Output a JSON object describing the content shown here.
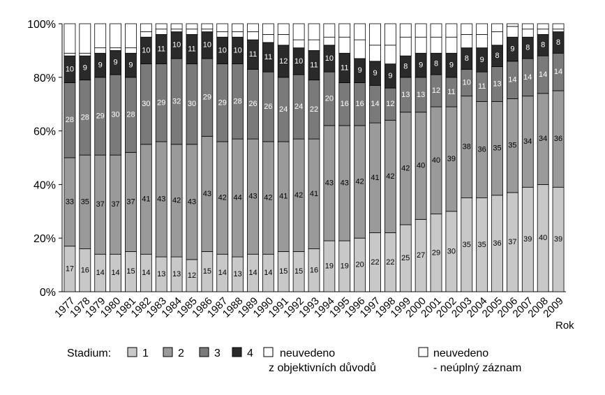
{
  "chart_data": {
    "type": "bar",
    "stacked": true,
    "percent": true,
    "title": "",
    "xlabel": "Rok",
    "ylabel": "",
    "ylim": [
      0,
      100
    ],
    "yticks": [
      "0%",
      "20%",
      "40%",
      "60%",
      "80%",
      "100%"
    ],
    "categories": [
      "1977",
      "1978",
      "1979",
      "1980",
      "1981",
      "1982",
      "1983",
      "1984",
      "1985",
      "1986",
      "1987",
      "1988",
      "1989",
      "1990",
      "1991",
      "1992",
      "1993",
      "1994",
      "1995",
      "1996",
      "1997",
      "1998",
      "1999",
      "2000",
      "2001",
      "2002",
      "2003",
      "2004",
      "2005",
      "2006",
      "2007",
      "2008",
      "2009"
    ],
    "legend_title": "Stadium:",
    "legend_position": "bottom",
    "series": [
      {
        "name": "1",
        "color": "#c8c8c8",
        "values": [
          17,
          16,
          14,
          14,
          15,
          14,
          13,
          13,
          12,
          15,
          14,
          13,
          14,
          14,
          15,
          15,
          16,
          19,
          19,
          20,
          22,
          22,
          25,
          27,
          29,
          30,
          35,
          35,
          36,
          37,
          39,
          40,
          39
        ]
      },
      {
        "name": "2",
        "color": "#9a9a9a",
        "values": [
          33,
          35,
          37,
          37,
          37,
          41,
          43,
          42,
          43,
          43,
          42,
          44,
          43,
          42,
          41,
          42,
          41,
          43,
          43,
          42,
          41,
          42,
          42,
          40,
          40,
          39,
          38,
          36,
          35,
          35,
          34,
          34,
          36
        ]
      },
      {
        "name": "3",
        "color": "#7a7a7a",
        "values": [
          28,
          28,
          29,
          30,
          28,
          30,
          29,
          32,
          30,
          29,
          29,
          28,
          26,
          26,
          24,
          24,
          22,
          20,
          16,
          16,
          14,
          12,
          13,
          13,
          12,
          11,
          10,
          11,
          13,
          14,
          14,
          14,
          14
        ]
      },
      {
        "name": "4",
        "color": "#2a2a2a",
        "values": [
          10,
          9,
          9,
          9,
          9,
          10,
          11,
          10,
          11,
          10,
          10,
          10,
          11,
          11,
          12,
          10,
          11,
          10,
          11,
          9,
          9,
          9,
          8,
          9,
          8,
          9,
          8,
          9,
          8,
          9,
          8,
          8,
          8
        ]
      },
      {
        "name": "neuvedeno z objektivních důvodů",
        "color": "#ffffff",
        "values": [
          1,
          1,
          2,
          1,
          2,
          2,
          2,
          1,
          2,
          1,
          2,
          2,
          3,
          3,
          4,
          3,
          4,
          3,
          6,
          7,
          6,
          7,
          7,
          6,
          6,
          6,
          5,
          5,
          5,
          4,
          3,
          2,
          1
        ]
      },
      {
        "name": "neuvedeno - neúplný záznam",
        "color": "#ffffff",
        "values": [
          11,
          11,
          9,
          9,
          9,
          3,
          2,
          2,
          2,
          2,
          3,
          3,
          3,
          4,
          4,
          6,
          6,
          5,
          5,
          6,
          8,
          8,
          5,
          5,
          5,
          5,
          4,
          4,
          3,
          1,
          2,
          2,
          2
        ]
      }
    ]
  },
  "legend": {
    "title": "Stadium:",
    "items": [
      {
        "label": "1",
        "color": "#c8c8c8"
      },
      {
        "label": "2",
        "color": "#9a9a9a"
      },
      {
        "label": "3",
        "color": "#7a7a7a"
      },
      {
        "label": "4",
        "color": "#2a2a2a"
      },
      {
        "label_line1": "neuvedeno",
        "label_line2": "z objektivních důvodů",
        "color": "#ffffff"
      },
      {
        "label_line1": "neuvedeno",
        "label_line2": "- neúplný záznam",
        "color": "#ffffff"
      }
    ]
  }
}
